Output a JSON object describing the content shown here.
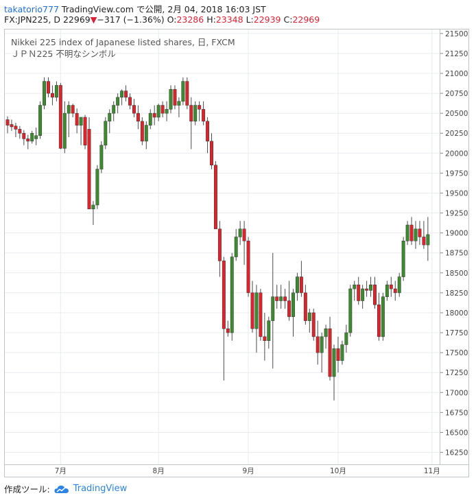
{
  "header": {
    "author": "takatorio777",
    "publish_info": "TradingView.com で公開, 2月 04, 2018 16:03 JST",
    "symbol_interval": "FX:JPN225, D",
    "last_price": "22969",
    "change_arrow": "▼",
    "change": "−317 (−1.36%)",
    "o_label": "O:",
    "o_value": "23286",
    "h_label": "H:",
    "h_value": "23348",
    "l_label": "L:",
    "l_value": "22939",
    "c_label": "C:",
    "c_value": "22969"
  },
  "legend": {
    "line1": "Nikkei 225 index of Japanese listed shares, 日, FXCM",
    "line2": "ＪＰＮ225 不明なシンボル"
  },
  "footer": {
    "label": "作成ツール:",
    "brand": "TradingView"
  },
  "colors": {
    "up": "#3d8b2f",
    "down": "#e0232b",
    "grid": "#e8ecef",
    "wick": "#4a4a4a"
  },
  "chart_data": {
    "type": "candlestick",
    "ylim": [
      16100,
      21550
    ],
    "yticks": [
      16250,
      16500,
      16750,
      17000,
      17250,
      17500,
      17750,
      18000,
      18250,
      18500,
      18750,
      19000,
      19250,
      19500,
      19750,
      20000,
      20250,
      20500,
      20750,
      21000,
      21250,
      21500
    ],
    "xticks": [
      {
        "label": "7月",
        "index": 13
      },
      {
        "label": "8月",
        "index": 37
      },
      {
        "label": "9月",
        "index": 59
      },
      {
        "label": "10月",
        "index": 81
      },
      {
        "label": "11月",
        "index": 104
      }
    ],
    "candles": [
      [
        20420,
        20460,
        20250,
        20350
      ],
      [
        20360,
        20420,
        20280,
        20330
      ],
      [
        20340,
        20380,
        20200,
        20300
      ],
      [
        20300,
        20340,
        20180,
        20250
      ],
      [
        20250,
        20290,
        20100,
        20180
      ],
      [
        20180,
        20230,
        20050,
        20150
      ],
      [
        20150,
        20280,
        20120,
        20250
      ],
      [
        20180,
        20320,
        20100,
        20220
      ],
      [
        20220,
        20650,
        20180,
        20600
      ],
      [
        20600,
        20950,
        20550,
        20900
      ],
      [
        20900,
        20950,
        20700,
        20750
      ],
      [
        20750,
        20850,
        20600,
        20700
      ],
      [
        20700,
        20900,
        20650,
        20850
      ],
      [
        20850,
        20880,
        20050,
        20060
      ],
      [
        20060,
        20650,
        20000,
        20500
      ],
      [
        20500,
        20650,
        20200,
        20600
      ],
      [
        20600,
        20620,
        20450,
        20500
      ],
      [
        20500,
        20560,
        20250,
        20350
      ],
      [
        20350,
        20450,
        20100,
        20450
      ],
      [
        20450,
        20480,
        20050,
        20100
      ],
      [
        20300,
        20450,
        19300,
        19300
      ],
      [
        19300,
        19400,
        19100,
        19350
      ],
      [
        19350,
        19850,
        19300,
        19800
      ],
      [
        19800,
        20150,
        19750,
        20100
      ],
      [
        20100,
        20450,
        20050,
        20400
      ],
      [
        20400,
        20550,
        20250,
        20500
      ],
      [
        20500,
        20650,
        20400,
        20600
      ],
      [
        20600,
        20750,
        20500,
        20700
      ],
      [
        20700,
        20800,
        20600,
        20780
      ],
      [
        20780,
        20850,
        20650,
        20700
      ],
      [
        20700,
        20750,
        20550,
        20600
      ],
      [
        20600,
        20680,
        20450,
        20500
      ],
      [
        20500,
        20600,
        20300,
        20400
      ],
      [
        20400,
        20450,
        20100,
        20150
      ],
      [
        20150,
        20400,
        20050,
        20350
      ],
      [
        20350,
        20550,
        20300,
        20500
      ],
      [
        20500,
        20600,
        20350,
        20450
      ],
      [
        20450,
        20620,
        20400,
        20600
      ],
      [
        20600,
        20650,
        20450,
        20500
      ],
      [
        20500,
        20650,
        20400,
        20550
      ],
      [
        20550,
        20850,
        20500,
        20800
      ],
      [
        20800,
        20850,
        20550,
        20600
      ],
      [
        20600,
        20700,
        20450,
        20650
      ],
      [
        20650,
        20950,
        20600,
        20900
      ],
      [
        20900,
        20950,
        20550,
        20600
      ],
      [
        20600,
        20700,
        20050,
        20400
      ],
      [
        20400,
        20650,
        20350,
        20600
      ],
      [
        20600,
        20650,
        20400,
        20550
      ],
      [
        20550,
        20650,
        20350,
        20400
      ],
      [
        20400,
        20450,
        20000,
        20150
      ],
      [
        20150,
        20250,
        19800,
        19850
      ],
      [
        19850,
        19900,
        19050,
        19050
      ],
      [
        19050,
        19150,
        18450,
        18650
      ],
      [
        18650,
        18700,
        17150,
        17800
      ],
      [
        17800,
        17900,
        17700,
        17750
      ],
      [
        17750,
        18750,
        17650,
        18700
      ],
      [
        18700,
        19050,
        18650,
        18950
      ],
      [
        18950,
        19150,
        18850,
        19050
      ],
      [
        19050,
        19150,
        18600,
        18900
      ],
      [
        18900,
        18950,
        18200,
        18250
      ],
      [
        18250,
        18400,
        17750,
        17800
      ],
      [
        17800,
        18350,
        17500,
        18250
      ],
      [
        18250,
        18300,
        17650,
        17700
      ],
      [
        17700,
        18000,
        17400,
        17650
      ],
      [
        17650,
        17950,
        17550,
        17900
      ],
      [
        17900,
        18750,
        17300,
        18200
      ],
      [
        18200,
        18350,
        18050,
        18150
      ],
      [
        18150,
        18350,
        18050,
        18200
      ],
      [
        18200,
        18300,
        18050,
        18150
      ],
      [
        18150,
        18400,
        17900,
        17950
      ],
      [
        17950,
        18300,
        17700,
        18250
      ],
      [
        18250,
        18500,
        18150,
        18450
      ],
      [
        18450,
        18650,
        18200,
        18250
      ],
      [
        18250,
        18350,
        17850,
        17900
      ],
      [
        17900,
        18050,
        17750,
        18000
      ],
      [
        18000,
        18050,
        17650,
        17700
      ],
      [
        17700,
        17900,
        17350,
        17500
      ],
      [
        17500,
        17750,
        17250,
        17700
      ],
      [
        17700,
        17850,
        17550,
        17800
      ],
      [
        17800,
        17950,
        17150,
        17200
      ],
      [
        17200,
        17600,
        16900,
        17550
      ],
      [
        17550,
        17700,
        17250,
        17400
      ],
      [
        17400,
        17650,
        17350,
        17600
      ],
      [
        17600,
        17850,
        17500,
        17750
      ],
      [
        17750,
        18350,
        17700,
        18300
      ],
      [
        18300,
        18400,
        18150,
        18350
      ],
      [
        18350,
        18450,
        18100,
        18150
      ],
      [
        18150,
        18350,
        18050,
        18300
      ],
      [
        18300,
        18400,
        18200,
        18280
      ],
      [
        18280,
        18450,
        18200,
        18350
      ],
      [
        18350,
        18450,
        18050,
        18100
      ],
      [
        18100,
        18250,
        17650,
        17700
      ],
      [
        17700,
        18250,
        17650,
        18200
      ],
      [
        18200,
        18400,
        18150,
        18350
      ],
      [
        18350,
        18450,
        18200,
        18300
      ],
      [
        18300,
        18400,
        18150,
        18250
      ],
      [
        18250,
        18500,
        18200,
        18450
      ],
      [
        18450,
        18950,
        18400,
        18900
      ],
      [
        18900,
        19150,
        18850,
        19100
      ],
      [
        19100,
        19200,
        18850,
        18900
      ],
      [
        18900,
        19150,
        18800,
        19050
      ],
      [
        19050,
        19150,
        18850,
        18950
      ],
      [
        18950,
        19150,
        18800,
        18850
      ],
      [
        18850,
        19200,
        18650,
        18980
      ]
    ]
  }
}
